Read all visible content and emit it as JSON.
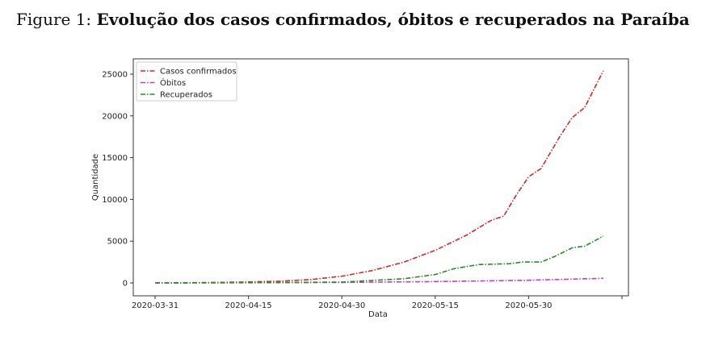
{
  "caption": {
    "label": "Figure 1:",
    "title": "Evolução dos casos confirmados, óbitos e recuperados na Paraíba"
  },
  "chart_data": {
    "type": "line",
    "title": "Evolução dos casos confirmados, óbitos e recuperados na Paraíba",
    "xlabel": "Data",
    "ylabel": "Quantidade",
    "xlim": [
      "2020-03-28",
      "2020-06-16"
    ],
    "ylim": [
      -1300,
      26800
    ],
    "xticks": [
      "2020-03-31",
      "2020-04-15",
      "2020-04-30",
      "2020-05-15",
      "2020-05-30",
      "2020-06-14"
    ],
    "xtick_labels": [
      "2020-03-31",
      "2020-04-15",
      "2020-04-30",
      "2020-05-15",
      "2020-05-30",
      ""
    ],
    "yticks": [
      0,
      5000,
      10000,
      15000,
      20000,
      25000
    ],
    "ytick_labels": [
      "0",
      "5000",
      "10000",
      "15000",
      "20000",
      "25000"
    ],
    "legend_position": "top-left",
    "grid": false,
    "series": [
      {
        "name": "Casos confirmados",
        "color": "#d62728",
        "dates": [
          "2020-03-31",
          "2020-04-05",
          "2020-04-10",
          "2020-04-15",
          "2020-04-20",
          "2020-04-25",
          "2020-04-30",
          "2020-05-05",
          "2020-05-10",
          "2020-05-15",
          "2020-05-20",
          "2020-05-24",
          "2020-05-26",
          "2020-05-28",
          "2020-05-30",
          "2020-06-01",
          "2020-06-04",
          "2020-06-06",
          "2020-06-08",
          "2020-06-11"
        ],
        "values": [
          0,
          20,
          60,
          120,
          200,
          400,
          800,
          1500,
          2500,
          3900,
          5700,
          7500,
          8000,
          10500,
          12700,
          13700,
          17500,
          19800,
          21000,
          25400
        ]
      },
      {
        "name": "Óbitos",
        "color": "#bf3fbf",
        "dates": [
          "2020-03-31",
          "2020-04-15",
          "2020-04-30",
          "2020-05-15",
          "2020-05-30",
          "2020-06-11"
        ],
        "values": [
          0,
          15,
          60,
          150,
          320,
          550
        ]
      },
      {
        "name": "Recuperados",
        "color": "#2a8a2a",
        "dates": [
          "2020-03-31",
          "2020-04-15",
          "2020-04-30",
          "2020-05-05",
          "2020-05-10",
          "2020-05-15",
          "2020-05-18",
          "2020-05-22",
          "2020-05-27",
          "2020-05-29",
          "2020-06-01",
          "2020-06-03",
          "2020-06-06",
          "2020-06-08",
          "2020-06-11"
        ],
        "values": [
          0,
          30,
          100,
          300,
          500,
          1000,
          1700,
          2200,
          2300,
          2500,
          2500,
          3100,
          4200,
          4400,
          5600
        ]
      }
    ]
  }
}
